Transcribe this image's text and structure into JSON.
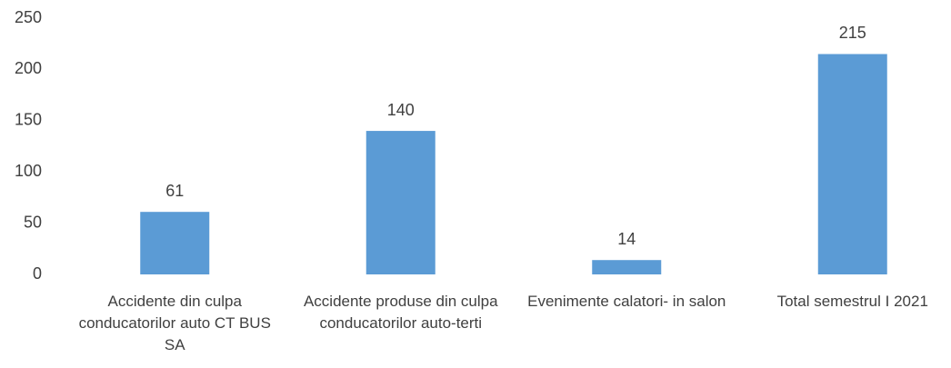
{
  "chart_data": {
    "type": "bar",
    "categories": [
      "Accidente din culpa conducatorilor auto CT BUS SA",
      "Accidente produse din culpa conducatorilor auto-terti",
      "Evenimente calatori- in salon",
      "Total semestrul I 2021"
    ],
    "values": [
      61,
      140,
      14,
      215
    ],
    "color": "#5b9bd5",
    "ylim": [
      0,
      250
    ],
    "yticks": [
      0,
      50,
      100,
      150,
      200,
      250
    ],
    "grid": false
  }
}
